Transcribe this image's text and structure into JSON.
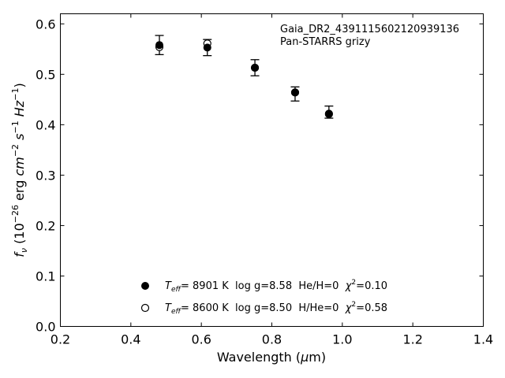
{
  "chart_data": {
    "type": "scatter",
    "xlabel": "Wavelength (μm)",
    "ylabel": "f_ν (10^-26 erg cm^-2 s^-1 Hz^-1)",
    "xlim": [
      0.2,
      1.4
    ],
    "ylim": [
      0.0,
      0.62
    ],
    "xticks": [
      "0.2",
      "0.4",
      "0.6",
      "0.8",
      "1.0",
      "1.2",
      "1.4"
    ],
    "yticks": [
      "0.0",
      "0.1",
      "0.2",
      "0.3",
      "0.4",
      "0.5",
      "0.6"
    ],
    "grid": false,
    "annotation": [
      "Gaia_DR2_4391115602120939136",
      "Pan-STARRS grizy"
    ],
    "observed": {
      "x": [
        0.481,
        0.617,
        0.752,
        0.866,
        0.962
      ],
      "y": [
        0.558,
        0.553,
        0.513,
        0.461,
        0.425
      ],
      "err": [
        0.019,
        0.016,
        0.016,
        0.014,
        0.012
      ]
    },
    "series": [
      {
        "marker": "filled-circle",
        "legend": {
          "teff_value": "8901 K",
          "logg": "log g=8.58",
          "comp": "He/H=0",
          "chi2_value": "0.10"
        },
        "x": [
          0.481,
          0.617,
          0.752,
          0.866,
          0.962
        ],
        "y": [
          0.558,
          0.553,
          0.513,
          0.464,
          0.422
        ]
      },
      {
        "marker": "open-circle",
        "legend": {
          "teff_value": "8600 K",
          "logg": "log g=8.50",
          "comp": "H/He=0",
          "chi2_value": "0.58"
        },
        "x": [
          0.481,
          0.617,
          0.752,
          0.866,
          0.962
        ],
        "y": [
          0.554,
          0.561,
          0.513,
          0.464,
          0.421
        ]
      }
    ]
  }
}
